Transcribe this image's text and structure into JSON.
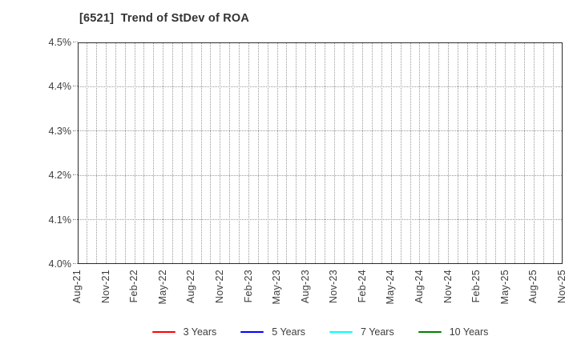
{
  "title": "[6521]  Trend of StDev of ROA",
  "chart_data": {
    "type": "line",
    "title": "[6521]  Trend of StDev of ROA",
    "x_tick_labels": [
      "Aug-21",
      "Nov-21",
      "Feb-22",
      "May-22",
      "Aug-22",
      "Nov-22",
      "Feb-23",
      "May-23",
      "Aug-23",
      "Nov-23",
      "Feb-24",
      "May-24",
      "Aug-24",
      "Nov-24",
      "Feb-25",
      "May-25",
      "Aug-25",
      "Nov-25"
    ],
    "x_tick_interval_months": 3,
    "x_total_months": 52,
    "y_tick_labels": [
      "4.0%",
      "4.1%",
      "4.2%",
      "4.3%",
      "4.4%",
      "4.5%"
    ],
    "ylim": [
      4.0,
      4.5
    ],
    "grid": true,
    "grid_style": "dotted",
    "legend_position": "bottom",
    "series": [
      {
        "name": "3 Years",
        "color": "#ff0000",
        "values": []
      },
      {
        "name": "5 Years",
        "color": "#0000ff",
        "values": []
      },
      {
        "name": "7 Years",
        "color": "#00ffff",
        "values": []
      },
      {
        "name": "10 Years",
        "color": "#008000",
        "values": []
      }
    ]
  },
  "colors": {
    "background": "#ffffff",
    "axis_border": "#2b2b2b",
    "grid": "#9a9a9a",
    "tick_label": "#3d3d3d",
    "title": "#333333"
  }
}
